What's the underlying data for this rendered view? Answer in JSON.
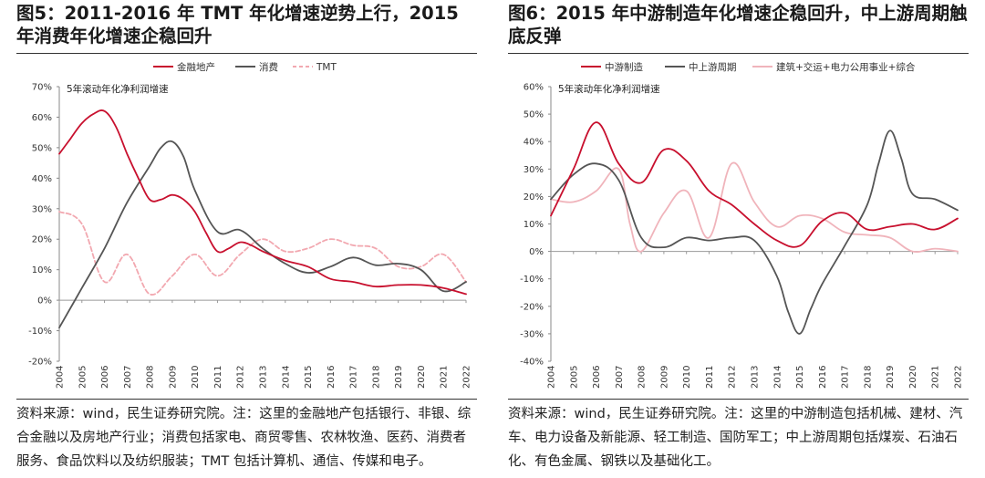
{
  "left": {
    "title": "图5：2011-2016 年 TMT 年化增速逆势上行，2015 年消费年化增速企稳回升",
    "note": "资料来源：wind，民生证券研究院。注：这里的金融地产包括银行、非银、综合金融以及房地产行业；消费包括家电、商贸零售、农林牧渔、医药、消费者服务、食品饮料以及纺织服装；TMT 包括计算机、通信、传媒和电子。",
    "chart_data": {
      "type": "line",
      "title": "",
      "annotation": "5年滚动年化净利润增速",
      "legend_position": "top",
      "grid": false,
      "ylim": [
        -20,
        70
      ],
      "yticks": [
        "70%",
        "60%",
        "50%",
        "40%",
        "30%",
        "20%",
        "10%",
        "0%",
        "-10%",
        "-20%"
      ],
      "xlim": [
        2004,
        2022
      ],
      "xticks": [
        "2004",
        "2005",
        "2006",
        "2007",
        "2008",
        "2009",
        "2010",
        "2011",
        "2012",
        "2013",
        "2014",
        "2015",
        "2016",
        "2017",
        "2018",
        "2019",
        "2020",
        "2021",
        "2022"
      ],
      "series": [
        {
          "name": "金融地产",
          "color": "#c8102e",
          "dash": "solid",
          "x": [
            2004,
            2004.5,
            2005,
            2005.5,
            2006,
            2006.5,
            2007,
            2007.5,
            2008,
            2008.5,
            2009,
            2009.5,
            2010,
            2010.5,
            2011,
            2011.5,
            2012,
            2012.5,
            2013,
            2014,
            2015,
            2016,
            2017,
            2018,
            2019,
            2020,
            2021,
            2022
          ],
          "y": [
            48,
            53,
            58,
            61,
            62,
            57,
            48,
            40,
            33,
            33,
            34.5,
            33,
            29,
            22,
            16,
            17,
            19,
            18,
            16,
            13,
            11,
            7,
            6,
            4.5,
            5,
            5,
            4,
            2
          ]
        },
        {
          "name": "消费",
          "color": "#555555",
          "dash": "solid",
          "x": [
            2004,
            2005,
            2006,
            2007,
            2008,
            2008.5,
            2009,
            2009.5,
            2010,
            2011,
            2012,
            2013,
            2014,
            2015,
            2016,
            2017,
            2018,
            2019,
            2020,
            2021,
            2022
          ],
          "y": [
            -9,
            4,
            17,
            32,
            44,
            50,
            52,
            47,
            36,
            22.5,
            23,
            17,
            12,
            9,
            11,
            14,
            11.5,
            12,
            10,
            3,
            6
          ]
        },
        {
          "name": "TMT",
          "color": "#f2a8b0",
          "dash": "dashed",
          "x": [
            2004,
            2005,
            2006,
            2007,
            2008,
            2009,
            2010,
            2011,
            2012,
            2013,
            2014,
            2015,
            2016,
            2017,
            2018,
            2019,
            2020,
            2021,
            2022
          ],
          "y": [
            29,
            25,
            6,
            15,
            2,
            8,
            15,
            8,
            15,
            20,
            16,
            17,
            20,
            18,
            17,
            11,
            11,
            15,
            6
          ]
        }
      ]
    }
  },
  "right": {
    "title": "图6：2015 年中游制造年化增速企稳回升，中上游周期触底反弹",
    "note": "资料来源：wind，民生证券研究院。注：这里的中游制造包括机械、建材、汽车、电力设备及新能源、轻工制造、国防军工；中上游周期包括煤炭、石油石化、有色金属、钢铁以及基础化工。",
    "chart_data": {
      "type": "line",
      "title": "",
      "annotation": "5年滚动年化净利润增速",
      "legend_position": "top",
      "grid": false,
      "ylim": [
        -40,
        60
      ],
      "yticks": [
        "60%",
        "50%",
        "40%",
        "30%",
        "20%",
        "10%",
        "0%",
        "-10%",
        "-20%",
        "-30%",
        "-40%"
      ],
      "xlim": [
        2004,
        2022
      ],
      "xticks": [
        "2004",
        "2005",
        "2006",
        "2007",
        "2008",
        "2009",
        "2010",
        "2011",
        "2012",
        "2013",
        "2014",
        "2015",
        "2016",
        "2017",
        "2018",
        "2019",
        "2020",
        "2021",
        "2022"
      ],
      "series": [
        {
          "name": "中游制造",
          "color": "#c8102e",
          "dash": "solid",
          "x": [
            2004,
            2005,
            2006,
            2007,
            2008,
            2009,
            2010,
            2011,
            2012,
            2013,
            2014,
            2015,
            2016,
            2017,
            2018,
            2019,
            2020,
            2021,
            2022
          ],
          "y": [
            13,
            30,
            47,
            32,
            25,
            37,
            33,
            22,
            17,
            10,
            4,
            2,
            11,
            14,
            8,
            9,
            10,
            8,
            12
          ]
        },
        {
          "name": "中上游周期",
          "color": "#555555",
          "dash": "solid",
          "x": [
            2004,
            2005,
            2006,
            2007,
            2008,
            2009,
            2010,
            2011,
            2012,
            2013,
            2014,
            2014.5,
            2015,
            2015.5,
            2016,
            2017,
            2018,
            2018.5,
            2019,
            2019.5,
            2020,
            2021,
            2022
          ],
          "y": [
            19,
            28,
            32,
            26,
            5,
            1.5,
            5,
            4,
            5,
            4,
            -9,
            -22,
            -30,
            -21,
            -12,
            2,
            17,
            32,
            44,
            34,
            21,
            19,
            15
          ]
        },
        {
          "name": "建筑+交运+电力公用事业+综合",
          "color": "#f0b4bb",
          "dash": "solid",
          "x": [
            2004,
            2005,
            2006,
            2007,
            2007.5,
            2008,
            2009,
            2010,
            2011,
            2012,
            2013,
            2014,
            2015,
            2016,
            2017,
            2018,
            2019,
            2020,
            2021,
            2022
          ],
          "y": [
            19,
            18,
            22,
            30,
            10,
            0,
            14,
            22,
            5,
            32,
            18,
            9,
            13,
            12,
            7,
            6,
            5,
            0,
            1,
            0
          ]
        }
      ]
    }
  }
}
